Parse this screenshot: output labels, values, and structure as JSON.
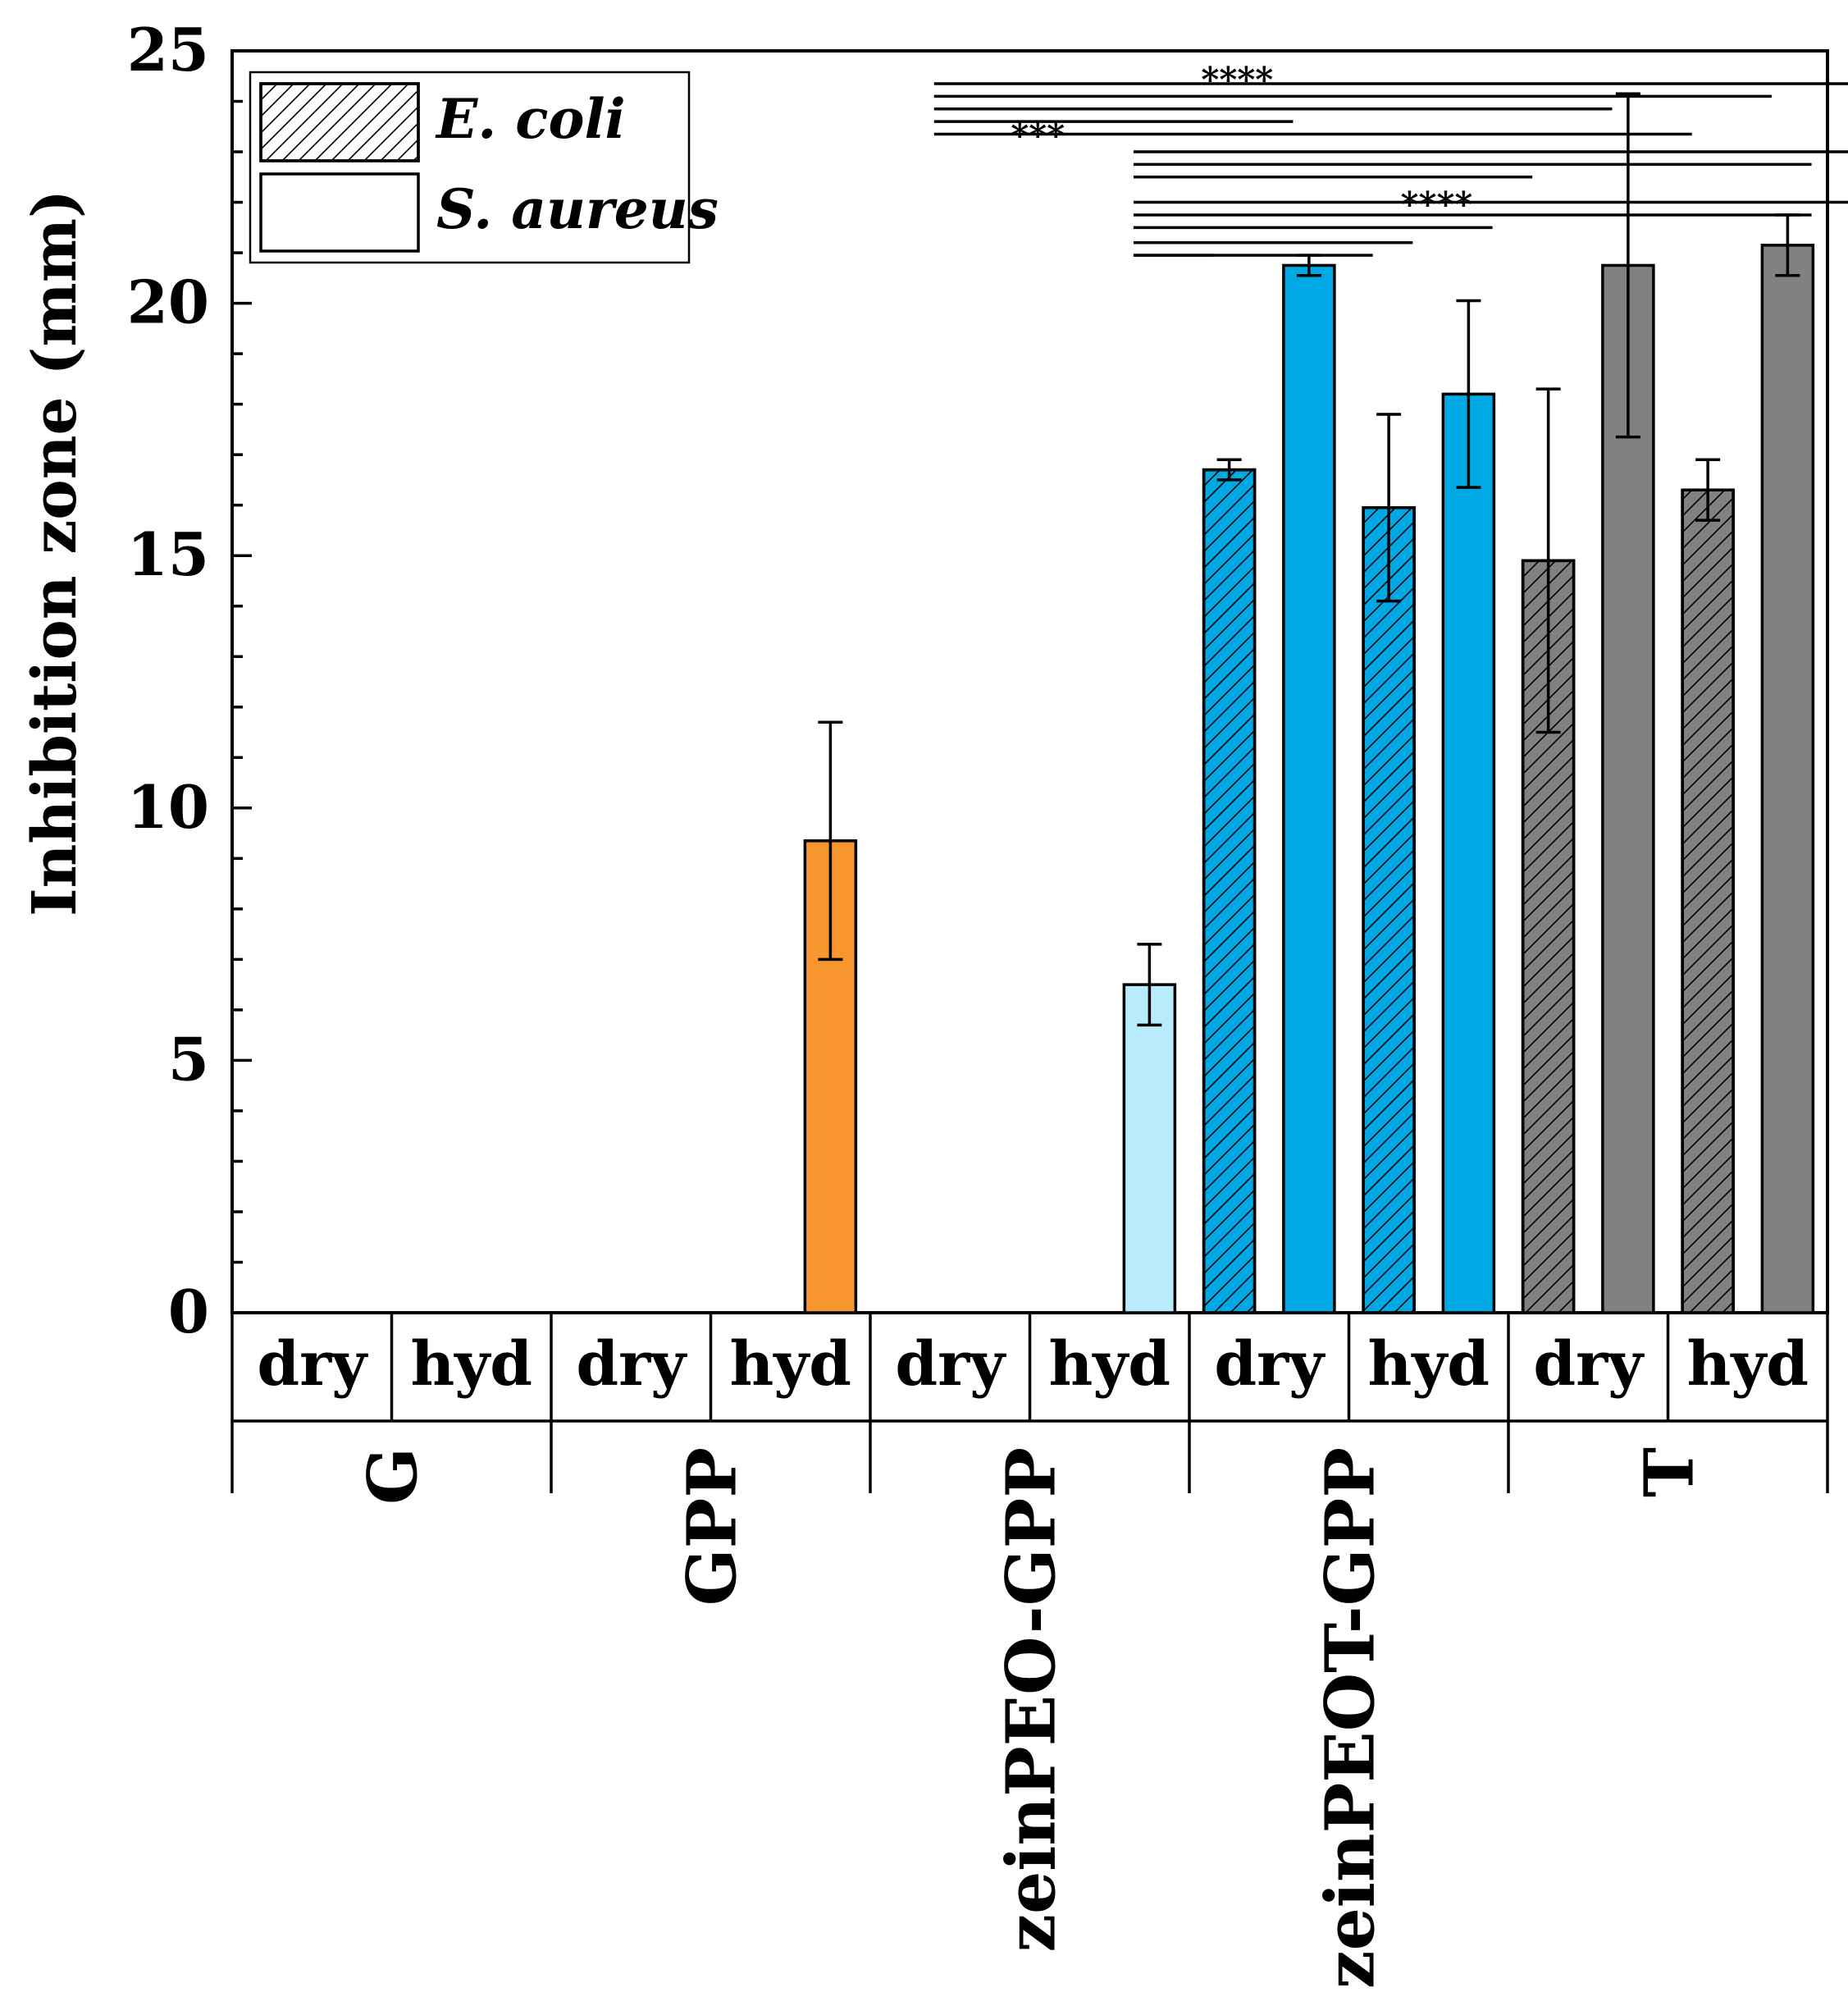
{
  "chart_data": {
    "type": "bar",
    "title": "",
    "ylabel": "Inhibition zone (mm)",
    "ylim": [
      0,
      25
    ],
    "yticks": [
      "0",
      "5",
      "10",
      "15",
      "20",
      "25"
    ],
    "legend": {
      "position": "top-left",
      "entries": [
        {
          "label": "E. coli",
          "pattern": "hatched"
        },
        {
          "label": "S. aureus",
          "pattern": "solid"
        }
      ]
    },
    "conditions": [
      "dry",
      "hyd"
    ],
    "groups": [
      {
        "name": "G",
        "color": "#ffffff",
        "bars": [
          {
            "condition": "dry",
            "organism": "E. coli",
            "value": 0,
            "err": 0
          },
          {
            "condition": "dry",
            "organism": "S. aureus",
            "value": 0,
            "err": 0
          },
          {
            "condition": "hyd",
            "organism": "E. coli",
            "value": 0,
            "err": 0
          },
          {
            "condition": "hyd",
            "organism": "S. aureus",
            "value": 0,
            "err": 0
          }
        ]
      },
      {
        "name": "GPP",
        "color": "#f7962f",
        "bars": [
          {
            "condition": "dry",
            "organism": "E. coli",
            "value": 0,
            "err": 0
          },
          {
            "condition": "dry",
            "organism": "S. aureus",
            "value": 0,
            "err": 0
          },
          {
            "condition": "hyd",
            "organism": "E. coli",
            "value": 0,
            "err": 0
          },
          {
            "condition": "hyd",
            "organism": "S. aureus",
            "value": 9.35,
            "err": 2.35
          }
        ]
      },
      {
        "name": "zeinPEO-GPP",
        "color": "#b8ecfd",
        "bars": [
          {
            "condition": "dry",
            "organism": "E. coli",
            "value": 0,
            "err": 0
          },
          {
            "condition": "dry",
            "organism": "S. aureus",
            "value": 0,
            "err": 0
          },
          {
            "condition": "hyd",
            "organism": "E. coli",
            "value": 0,
            "err": 0
          },
          {
            "condition": "hyd",
            "organism": "S. aureus",
            "value": 6.5,
            "err": 0.8
          }
        ]
      },
      {
        "name": "zeinPEOT-GPP",
        "color": "#00a9e4",
        "bars": [
          {
            "condition": "dry",
            "organism": "E. coli",
            "value": 16.7,
            "err": 0.2
          },
          {
            "condition": "dry",
            "organism": "S. aureus",
            "value": 20.75,
            "err": 0.2
          },
          {
            "condition": "hyd",
            "organism": "E. coli",
            "value": 15.95,
            "err": 1.85
          },
          {
            "condition": "hyd",
            "organism": "S. aureus",
            "value": 18.2,
            "err": 1.85
          }
        ]
      },
      {
        "name": "T",
        "color": "#818181",
        "bars": [
          {
            "condition": "dry",
            "organism": "E. coli",
            "value": 14.9,
            "err": 3.4
          },
          {
            "condition": "dry",
            "organism": "S. aureus",
            "value": 20.75,
            "err": 3.4
          },
          {
            "condition": "hyd",
            "organism": "E. coli",
            "value": 16.3,
            "err": 0.6
          },
          {
            "condition": "hyd",
            "organism": "S. aureus",
            "value": 21.15,
            "err": 0.6
          }
        ]
      }
    ],
    "significance": {
      "labels": [
        {
          "text": "****",
          "x_bar": 12.6,
          "y": 24.55
        },
        {
          "text": "***",
          "x_bar": 10.1,
          "y": 23.45
        },
        {
          "text": "****",
          "x_bar": 15.1,
          "y": 22.08
        }
      ],
      "lines": [
        {
          "from_bar": 8.8,
          "to_bar": 20.3,
          "y": 24.35
        },
        {
          "from_bar": 8.8,
          "to_bar": 19.3,
          "y": 24.1
        },
        {
          "from_bar": 8.8,
          "to_bar": 17.3,
          "y": 23.85
        },
        {
          "from_bar": 8.8,
          "to_bar": 13.3,
          "y": 23.6
        },
        {
          "from_bar": 8.8,
          "to_bar": 18.3,
          "y": 23.35
        },
        {
          "from_bar": 11.3,
          "to_bar": 20.8,
          "y": 23.0
        },
        {
          "from_bar": 11.3,
          "to_bar": 19.8,
          "y": 22.75
        },
        {
          "from_bar": 11.3,
          "to_bar": 16.3,
          "y": 22.5
        },
        {
          "from_bar": 11.3,
          "to_bar": 21.8,
          "y": 22.0
        },
        {
          "from_bar": 11.3,
          "to_bar": 19.8,
          "y": 21.75
        },
        {
          "from_bar": 11.3,
          "to_bar": 15.8,
          "y": 21.5
        },
        {
          "from_bar": 11.3,
          "to_bar": 14.8,
          "y": 21.2
        },
        {
          "from_bar": 11.3,
          "to_bar": 14.3,
          "y": 20.95
        },
        {
          "from_bar": 11.3,
          "to_bar": 12.3,
          "y": 20.95
        }
      ]
    }
  }
}
